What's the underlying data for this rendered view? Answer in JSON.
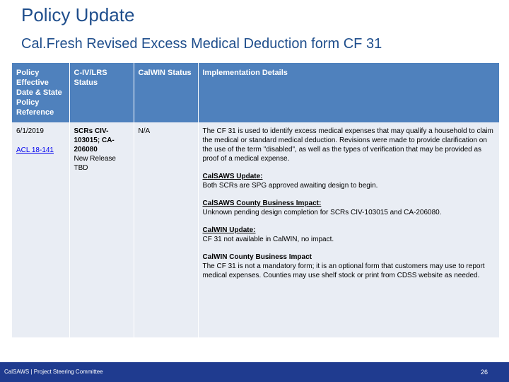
{
  "title": "Policy Update",
  "subtitle": "Cal.Fresh Revised Excess Medical Deduction form CF 31",
  "table": {
    "headers": [
      "Policy Effective Date & State Policy Reference",
      "C-IV/LRS Status",
      "CalWIN Status",
      "Implementation Details"
    ],
    "row": {
      "date": "6/1/2019",
      "reference_link": "ACL 18-141",
      "civ_status_bold": "SCRs CIV-103015; CA-206080",
      "civ_status_rest": "New Release TBD",
      "calwin_status": "N/A",
      "details": [
        {
          "heading": "",
          "text": "The CF 31 is used to identify excess medical expenses that may qualify a household to claim the medical or standard medical deduction. Revisions were made to provide clarification on the use of the term \"disabled\", as well as the types of verification that may be provided as proof of a medical expense."
        },
        {
          "heading": "CalSAWS Update:",
          "text": "Both SCRs are SPG approved awaiting design to begin."
        },
        {
          "heading": "CalSAWS County Business Impact:",
          "text": "Unknown pending design completion for SCRs CIV-103015 and CA-206080."
        },
        {
          "heading": "CalWIN Update:",
          "text": "CF 31 not available in CalWIN, no impact."
        },
        {
          "heading": "CalWIN County Business Impact",
          "text": "The CF 31 is not a mandatory form; it is an optional form that customers may use to report medical expenses. Counties may use shelf stock or print from CDSS website as needed."
        }
      ]
    }
  },
  "footer": {
    "left": "CalSAWS | Project Steering Committee",
    "page_number": "26"
  },
  "colors": {
    "title": "#1f4e8c",
    "header_bg": "#4f81bd",
    "body_bg": "#e9edf4",
    "footer_bg": "#1f3b8f"
  }
}
